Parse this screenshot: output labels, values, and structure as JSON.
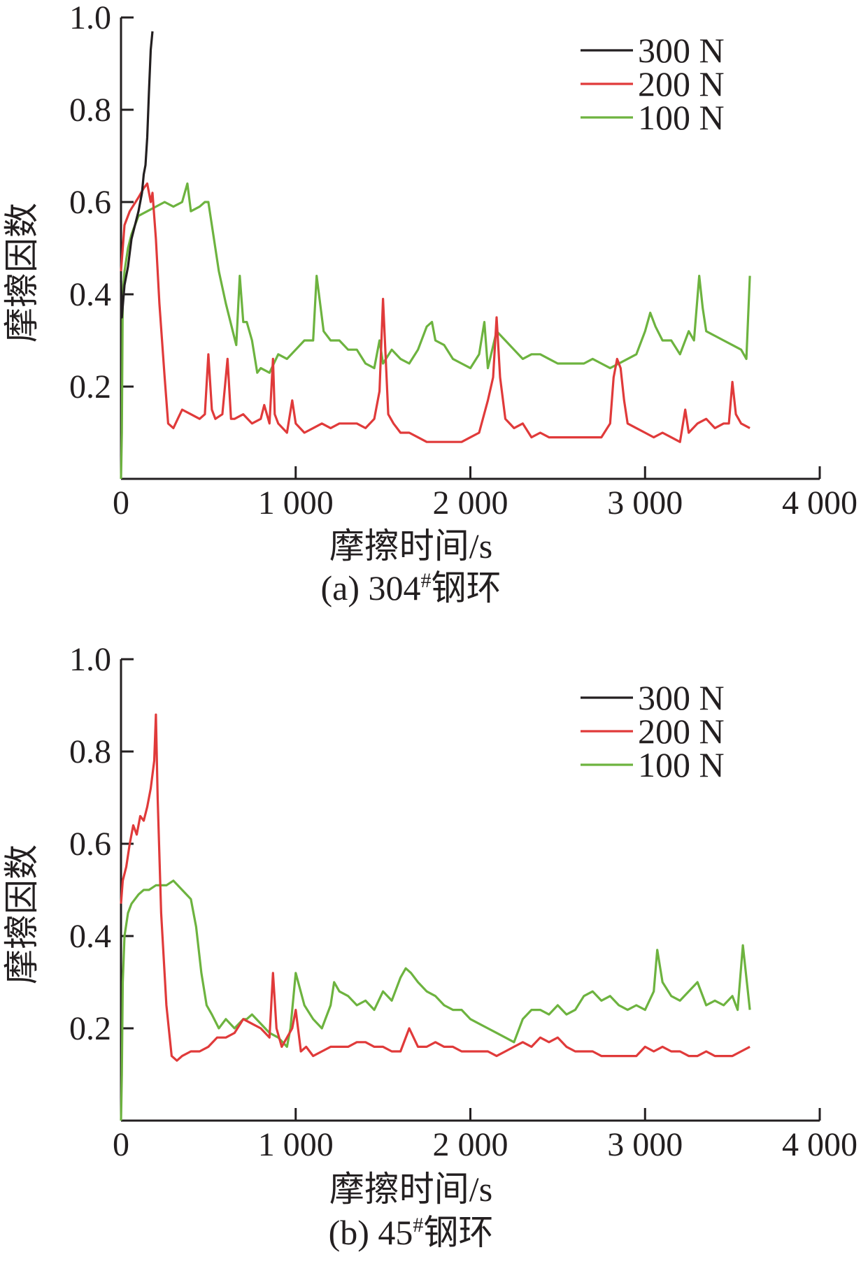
{
  "colors": {
    "s300": "#231f20",
    "s200": "#e03a3a",
    "s100": "#6db33f",
    "axis": "#231f20"
  },
  "chart_data": [
    {
      "type": "line",
      "caption": "(a) 304#钢环",
      "caption_main": "(a) 304",
      "caption_sup": "#",
      "caption_tail": "钢环",
      "xlabel": "摩擦时间/s",
      "ylabel": "摩擦因数",
      "xlim": [
        0,
        4000
      ],
      "ylim": [
        0,
        1.0
      ],
      "xticks": [
        0,
        1000,
        2000,
        3000,
        4000
      ],
      "xtick_labels": [
        "0",
        "1 000",
        "2 000",
        "3 000",
        "4 000"
      ],
      "yticks": [
        0.2,
        0.4,
        0.6,
        0.8,
        1.0
      ],
      "ytick_labels": [
        "0.2",
        "0.4",
        "0.6",
        "0.8",
        "1.0"
      ],
      "legend_position": "top-right",
      "series": [
        {
          "name": "300 N",
          "color": "#231f20",
          "x": [
            0,
            5,
            20,
            40,
            60,
            80,
            100,
            120,
            130,
            140,
            150,
            160,
            170,
            180
          ],
          "y": [
            0.43,
            0.35,
            0.42,
            0.46,
            0.52,
            0.55,
            0.58,
            0.62,
            0.66,
            0.68,
            0.74,
            0.84,
            0.93,
            0.97
          ]
        },
        {
          "name": "200 N",
          "color": "#e03a3a",
          "x": [
            0,
            20,
            50,
            100,
            130,
            150,
            170,
            180,
            200,
            220,
            250,
            270,
            300,
            350,
            400,
            450,
            480,
            500,
            520,
            540,
            580,
            610,
            630,
            650,
            700,
            750,
            800,
            820,
            850,
            870,
            880,
            900,
            950,
            980,
            1000,
            1050,
            1100,
            1150,
            1200,
            1250,
            1300,
            1350,
            1400,
            1450,
            1480,
            1500,
            1530,
            1560,
            1600,
            1650,
            1700,
            1750,
            1800,
            1850,
            1900,
            1950,
            2000,
            2050,
            2100,
            2130,
            2150,
            2170,
            2200,
            2250,
            2300,
            2350,
            2400,
            2450,
            2500,
            2550,
            2600,
            2650,
            2700,
            2750,
            2800,
            2820,
            2840,
            2860,
            2880,
            2900,
            2950,
            3000,
            3050,
            3100,
            3150,
            3200,
            3230,
            3250,
            3300,
            3350,
            3400,
            3450,
            3480,
            3500,
            3520,
            3550,
            3600
          ],
          "y": [
            0.45,
            0.55,
            0.58,
            0.61,
            0.63,
            0.64,
            0.6,
            0.62,
            0.52,
            0.38,
            0.22,
            0.12,
            0.11,
            0.15,
            0.14,
            0.13,
            0.14,
            0.27,
            0.15,
            0.13,
            0.14,
            0.26,
            0.13,
            0.13,
            0.14,
            0.12,
            0.13,
            0.16,
            0.12,
            0.26,
            0.14,
            0.12,
            0.1,
            0.17,
            0.12,
            0.1,
            0.11,
            0.12,
            0.11,
            0.12,
            0.12,
            0.12,
            0.11,
            0.13,
            0.19,
            0.39,
            0.14,
            0.12,
            0.1,
            0.1,
            0.09,
            0.08,
            0.08,
            0.08,
            0.08,
            0.08,
            0.09,
            0.1,
            0.17,
            0.22,
            0.35,
            0.22,
            0.13,
            0.11,
            0.12,
            0.09,
            0.1,
            0.09,
            0.09,
            0.09,
            0.09,
            0.09,
            0.09,
            0.09,
            0.12,
            0.22,
            0.26,
            0.24,
            0.17,
            0.12,
            0.11,
            0.1,
            0.09,
            0.1,
            0.09,
            0.08,
            0.15,
            0.1,
            0.12,
            0.13,
            0.11,
            0.12,
            0.12,
            0.21,
            0.14,
            0.12,
            0.11
          ]
        },
        {
          "name": "100 N",
          "color": "#6db33f",
          "x": [
            0,
            5,
            10,
            20,
            40,
            60,
            80,
            100,
            150,
            200,
            250,
            300,
            350,
            380,
            400,
            450,
            480,
            500,
            520,
            560,
            600,
            640,
            660,
            680,
            700,
            720,
            750,
            780,
            800,
            850,
            900,
            950,
            1000,
            1050,
            1100,
            1120,
            1140,
            1160,
            1200,
            1250,
            1300,
            1350,
            1400,
            1450,
            1480,
            1500,
            1550,
            1600,
            1650,
            1700,
            1750,
            1780,
            1800,
            1850,
            1900,
            1950,
            2000,
            2050,
            2080,
            2100,
            2150,
            2200,
            2250,
            2300,
            2350,
            2400,
            2450,
            2500,
            2550,
            2600,
            2650,
            2700,
            2750,
            2800,
            2850,
            2900,
            2950,
            3000,
            3030,
            3060,
            3100,
            3150,
            3200,
            3250,
            3280,
            3310,
            3330,
            3350,
            3400,
            3450,
            3500,
            3550,
            3580,
            3600
          ],
          "y": [
            0.0,
            0.1,
            0.4,
            0.45,
            0.5,
            0.53,
            0.55,
            0.57,
            0.58,
            0.59,
            0.6,
            0.59,
            0.6,
            0.64,
            0.58,
            0.59,
            0.6,
            0.6,
            0.55,
            0.45,
            0.38,
            0.32,
            0.29,
            0.44,
            0.34,
            0.34,
            0.3,
            0.23,
            0.24,
            0.23,
            0.27,
            0.26,
            0.28,
            0.3,
            0.3,
            0.44,
            0.38,
            0.32,
            0.3,
            0.3,
            0.28,
            0.28,
            0.25,
            0.24,
            0.3,
            0.25,
            0.28,
            0.26,
            0.25,
            0.28,
            0.33,
            0.34,
            0.3,
            0.29,
            0.26,
            0.25,
            0.24,
            0.27,
            0.34,
            0.24,
            0.32,
            0.3,
            0.28,
            0.26,
            0.27,
            0.27,
            0.26,
            0.25,
            0.25,
            0.25,
            0.25,
            0.26,
            0.25,
            0.24,
            0.25,
            0.26,
            0.27,
            0.32,
            0.36,
            0.33,
            0.3,
            0.3,
            0.27,
            0.32,
            0.3,
            0.44,
            0.37,
            0.32,
            0.31,
            0.3,
            0.29,
            0.28,
            0.26,
            0.44
          ]
        }
      ]
    },
    {
      "type": "line",
      "caption": "(b) 45#钢环",
      "caption_main": "(b) 45",
      "caption_sup": "#",
      "caption_tail": "钢环",
      "xlabel": "摩擦时间/s",
      "ylabel": "摩擦因数",
      "xlim": [
        0,
        4000
      ],
      "ylim": [
        0,
        1.0
      ],
      "xticks": [
        0,
        1000,
        2000,
        3000,
        4000
      ],
      "xtick_labels": [
        "0",
        "1 000",
        "2 000",
        "3 000",
        "4 000"
      ],
      "yticks": [
        0.2,
        0.4,
        0.6,
        0.8,
        1.0
      ],
      "ytick_labels": [
        "0.2",
        "0.4",
        "0.6",
        "0.8",
        "1.0"
      ],
      "legend_position": "top-right",
      "series": [
        {
          "name": "300 N",
          "color": "#231f20",
          "x": [],
          "y": []
        },
        {
          "name": "200 N",
          "color": "#e03a3a",
          "x": [
            0,
            10,
            30,
            50,
            70,
            90,
            110,
            130,
            150,
            170,
            190,
            200,
            210,
            230,
            260,
            290,
            320,
            350,
            400,
            450,
            500,
            550,
            600,
            650,
            700,
            750,
            800,
            850,
            870,
            890,
            920,
            950,
            980,
            1000,
            1030,
            1060,
            1100,
            1150,
            1200,
            1250,
            1300,
            1350,
            1400,
            1450,
            1500,
            1550,
            1600,
            1650,
            1700,
            1750,
            1800,
            1850,
            1900,
            1950,
            2000,
            2050,
            2100,
            2150,
            2200,
            2250,
            2300,
            2350,
            2400,
            2450,
            2500,
            2550,
            2600,
            2650,
            2700,
            2750,
            2800,
            2850,
            2900,
            2950,
            3000,
            3050,
            3100,
            3150,
            3200,
            3250,
            3300,
            3350,
            3400,
            3450,
            3500,
            3550,
            3600
          ],
          "y": [
            0.47,
            0.52,
            0.55,
            0.6,
            0.64,
            0.62,
            0.66,
            0.65,
            0.68,
            0.72,
            0.78,
            0.88,
            0.7,
            0.45,
            0.25,
            0.14,
            0.13,
            0.14,
            0.15,
            0.15,
            0.16,
            0.18,
            0.18,
            0.19,
            0.22,
            0.21,
            0.2,
            0.18,
            0.32,
            0.2,
            0.16,
            0.18,
            0.2,
            0.24,
            0.15,
            0.16,
            0.14,
            0.15,
            0.16,
            0.16,
            0.16,
            0.17,
            0.17,
            0.16,
            0.16,
            0.15,
            0.15,
            0.2,
            0.16,
            0.16,
            0.17,
            0.16,
            0.16,
            0.15,
            0.15,
            0.15,
            0.15,
            0.14,
            0.15,
            0.16,
            0.17,
            0.16,
            0.18,
            0.17,
            0.18,
            0.16,
            0.15,
            0.15,
            0.15,
            0.14,
            0.14,
            0.14,
            0.14,
            0.14,
            0.16,
            0.15,
            0.16,
            0.15,
            0.15,
            0.14,
            0.14,
            0.15,
            0.14,
            0.14,
            0.14,
            0.15,
            0.16
          ]
        },
        {
          "name": "100 N",
          "color": "#6db33f",
          "x": [
            0,
            5,
            10,
            20,
            40,
            60,
            80,
            100,
            130,
            160,
            200,
            230,
            260,
            300,
            350,
            400,
            430,
            460,
            490,
            520,
            560,
            600,
            650,
            700,
            720,
            750,
            800,
            850,
            900,
            950,
            970,
            1000,
            1050,
            1100,
            1150,
            1200,
            1220,
            1250,
            1300,
            1350,
            1400,
            1450,
            1500,
            1550,
            1600,
            1630,
            1660,
            1700,
            1750,
            1800,
            1850,
            1900,
            1950,
            2000,
            2050,
            2100,
            2150,
            2200,
            2250,
            2300,
            2350,
            2400,
            2450,
            2500,
            2550,
            2600,
            2650,
            2700,
            2750,
            2800,
            2850,
            2900,
            2950,
            3000,
            3050,
            3070,
            3100,
            3150,
            3200,
            3250,
            3300,
            3350,
            3400,
            3450,
            3500,
            3530,
            3560,
            3600
          ],
          "y": [
            0.0,
            0.1,
            0.3,
            0.4,
            0.45,
            0.47,
            0.48,
            0.49,
            0.5,
            0.5,
            0.51,
            0.51,
            0.51,
            0.52,
            0.5,
            0.48,
            0.42,
            0.32,
            0.25,
            0.23,
            0.2,
            0.22,
            0.2,
            0.22,
            0.22,
            0.23,
            0.21,
            0.19,
            0.18,
            0.16,
            0.2,
            0.32,
            0.25,
            0.22,
            0.2,
            0.25,
            0.3,
            0.28,
            0.27,
            0.25,
            0.26,
            0.24,
            0.28,
            0.26,
            0.31,
            0.33,
            0.32,
            0.3,
            0.28,
            0.27,
            0.25,
            0.24,
            0.24,
            0.22,
            0.21,
            0.2,
            0.19,
            0.18,
            0.17,
            0.22,
            0.24,
            0.24,
            0.23,
            0.25,
            0.23,
            0.24,
            0.27,
            0.28,
            0.26,
            0.27,
            0.25,
            0.24,
            0.25,
            0.24,
            0.28,
            0.37,
            0.3,
            0.27,
            0.26,
            0.28,
            0.3,
            0.25,
            0.26,
            0.25,
            0.27,
            0.24,
            0.38,
            0.24
          ]
        }
      ]
    }
  ]
}
